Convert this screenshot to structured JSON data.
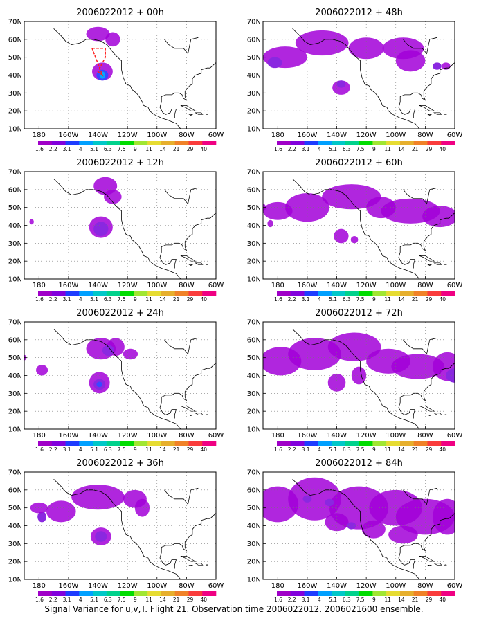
{
  "figure": {
    "caption": "Signal Variance for u,v,T. Flight 21. Observation time 2006022012. 2006021600 ensemble."
  },
  "axes": {
    "lat_labels": [
      "70N",
      "60N",
      "50N",
      "40N",
      "30N",
      "20N",
      "10N"
    ],
    "lon_labels": [
      "180",
      "160W",
      "140W",
      "120W",
      "100W",
      "80W",
      "60W"
    ],
    "lon_range": [
      -190,
      -60
    ],
    "lat_range": [
      10,
      70
    ],
    "grid": "dotted"
  },
  "colorbar": {
    "labels": [
      "1.6",
      "2.2",
      "3.1",
      "4",
      "5.1",
      "6.3",
      "7.5",
      "9",
      "11",
      "14",
      "21",
      "29",
      "40"
    ],
    "colors": [
      "#a000c8",
      "#8200dc",
      "#1e3cff",
      "#00a0ff",
      "#00c8c8",
      "#00d28c",
      "#00dc00",
      "#a0e632",
      "#e6dc32",
      "#e6af2d",
      "#f08228",
      "#fa3c3c",
      "#f00082"
    ]
  },
  "panels": [
    {
      "title": "2006022012 + 00h",
      "blobs": [
        [
          -140,
          63,
          8,
          4,
          1
        ],
        [
          -130,
          60,
          5,
          4,
          1
        ],
        [
          -137,
          42,
          7,
          5,
          1
        ],
        [
          -137,
          40,
          4,
          3,
          3
        ],
        [
          -137,
          40,
          2,
          2,
          4
        ]
      ],
      "flight_track": [
        [
          -144,
          55
        ],
        [
          -135,
          55
        ],
        [
          -135,
          50
        ],
        [
          -140,
          42
        ],
        [
          -137,
          40
        ],
        [
          -144,
          55
        ]
      ]
    },
    {
      "title": "2006022012 + 12h",
      "blobs": [
        [
          -135,
          62,
          8,
          5,
          1
        ],
        [
          -130,
          56,
          6,
          4,
          1
        ],
        [
          -138,
          39,
          8,
          6,
          1
        ],
        [
          -138,
          38,
          5,
          4,
          2
        ],
        [
          -185,
          42,
          1.5,
          1.5,
          1
        ]
      ]
    },
    {
      "title": "2006022012 + 24h",
      "blobs": [
        [
          -138,
          55,
          10,
          6,
          1
        ],
        [
          -128,
          56,
          6,
          5,
          1
        ],
        [
          -118,
          52,
          5,
          3,
          1
        ],
        [
          -133,
          54,
          4,
          3,
          2
        ],
        [
          -139,
          36,
          7,
          6,
          1
        ],
        [
          -139,
          35,
          4,
          3,
          2
        ],
        [
          -139,
          35,
          2,
          1.5,
          3
        ],
        [
          -178,
          43,
          4,
          3,
          1
        ],
        [
          -190,
          50,
          1.5,
          1.5,
          1
        ]
      ]
    },
    {
      "title": "2006022012 + 36h",
      "blobs": [
        [
          -165,
          48,
          10,
          6,
          1
        ],
        [
          -140,
          56,
          18,
          7,
          1
        ],
        [
          -115,
          55,
          8,
          5,
          1
        ],
        [
          -110,
          50,
          5,
          5,
          1
        ],
        [
          -138,
          34,
          7,
          5,
          1
        ],
        [
          -138,
          34,
          4,
          3,
          2
        ],
        [
          -178,
          45,
          3,
          3,
          2
        ],
        [
          -180,
          50,
          6,
          3,
          1
        ]
      ]
    },
    {
      "title": "2006022012 + 48h",
      "blobs": [
        [
          -175,
          50,
          15,
          6,
          1
        ],
        [
          -150,
          58,
          18,
          7,
          1
        ],
        [
          -120,
          55,
          12,
          6,
          1
        ],
        [
          -95,
          55,
          14,
          6,
          1
        ],
        [
          -90,
          48,
          10,
          6,
          1
        ],
        [
          -137,
          33,
          6,
          4,
          1
        ],
        [
          -137,
          35,
          3,
          2,
          2
        ],
        [
          -72,
          45,
          3,
          2,
          2
        ],
        [
          -66,
          45,
          3,
          2,
          1
        ],
        [
          -182,
          47,
          5,
          3,
          2
        ]
      ]
    },
    {
      "title": "2006022012 + 60h",
      "blobs": [
        [
          -180,
          48,
          10,
          5,
          1
        ],
        [
          -160,
          50,
          15,
          8,
          1
        ],
        [
          -130,
          56,
          20,
          7,
          1
        ],
        [
          -110,
          50,
          10,
          6,
          1
        ],
        [
          -90,
          48,
          20,
          7,
          1
        ],
        [
          -70,
          45,
          12,
          6,
          1
        ],
        [
          -137,
          34,
          5,
          4,
          1
        ],
        [
          -128,
          32,
          2.5,
          2,
          1
        ],
        [
          -185,
          41,
          2,
          2,
          1
        ],
        [
          -190,
          50,
          2,
          2,
          1
        ]
      ]
    },
    {
      "title": "2006022012 + 72h",
      "blobs": [
        [
          -178,
          48,
          14,
          8,
          1
        ],
        [
          -155,
          52,
          18,
          9,
          1
        ],
        [
          -128,
          56,
          18,
          8,
          1
        ],
        [
          -105,
          48,
          15,
          7,
          1
        ],
        [
          -85,
          45,
          18,
          7,
          1
        ],
        [
          -65,
          45,
          10,
          8,
          1
        ],
        [
          -140,
          36,
          6,
          5,
          1
        ],
        [
          -125,
          40,
          5,
          5,
          1
        ],
        [
          -60,
          40,
          6,
          4,
          2
        ]
      ]
    },
    {
      "title": "2006022012 + 84h",
      "blobs": [
        [
          -180,
          52,
          14,
          10,
          1
        ],
        [
          -155,
          55,
          18,
          12,
          1
        ],
        [
          -125,
          50,
          20,
          12,
          1
        ],
        [
          -100,
          50,
          18,
          10,
          1
        ],
        [
          -80,
          45,
          20,
          10,
          1
        ],
        [
          -65,
          45,
          10,
          10,
          1
        ],
        [
          -140,
          42,
          8,
          5,
          1
        ],
        [
          -115,
          38,
          8,
          5,
          1
        ],
        [
          -95,
          35,
          10,
          5,
          1
        ],
        [
          -145,
          53,
          3,
          2,
          2
        ],
        [
          -160,
          55,
          3,
          2,
          2
        ],
        [
          -130,
          40,
          3,
          2,
          2
        ]
      ]
    }
  ]
}
